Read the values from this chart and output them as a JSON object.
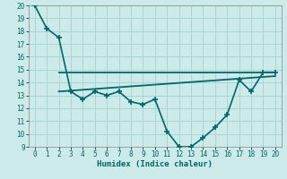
{
  "bg_color": "#cceaea",
  "grid_color": "#aad4d4",
  "line_color": "#006666",
  "curve_x": [
    0,
    1,
    2,
    3,
    4,
    5,
    6,
    7,
    8,
    9,
    10,
    11,
    12,
    13,
    14,
    15,
    16,
    17,
    18,
    19,
    20
  ],
  "curve_y": [
    20.0,
    18.2,
    17.5,
    13.3,
    12.7,
    13.3,
    13.0,
    13.3,
    12.5,
    12.3,
    12.7,
    10.2,
    9.0,
    9.0,
    9.7,
    10.5,
    11.5,
    14.2,
    13.3,
    14.8,
    14.8
  ],
  "hline_x": [
    2,
    20
  ],
  "hline_y": [
    14.8,
    14.8
  ],
  "trend_x": [
    2,
    20
  ],
  "trend_y": [
    13.3,
    14.5
  ],
  "xlabel": "Humidex (Indice chaleur)",
  "xlim": [
    -0.5,
    20.5
  ],
  "ylim": [
    9,
    20
  ],
  "xticks": [
    0,
    1,
    2,
    3,
    4,
    5,
    6,
    7,
    8,
    9,
    10,
    11,
    12,
    13,
    14,
    15,
    16,
    17,
    18,
    19,
    20
  ],
  "yticks": [
    9,
    10,
    11,
    12,
    13,
    14,
    15,
    16,
    17,
    18,
    19,
    20
  ]
}
